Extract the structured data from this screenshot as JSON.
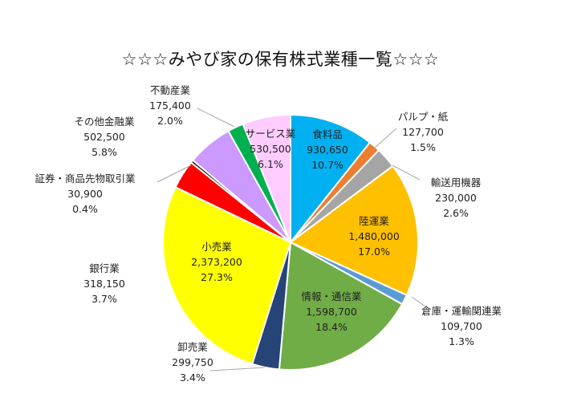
{
  "chart_data": {
    "type": "pie",
    "title": "☆☆☆みやび家の保有株式業種一覧☆☆☆",
    "start_angle_deg": 0,
    "direction": "clockwise",
    "slices": [
      {
        "name": "食料品",
        "value_label": "930,650",
        "value": 930650,
        "percent_label": "10.7%",
        "percent": 10.7,
        "color": "#00b0f0",
        "label_position": "inside"
      },
      {
        "name": "パルプ・紙",
        "value_label": "127,700",
        "value": 127700,
        "percent_label": "1.5%",
        "percent": 1.5,
        "color": "#ed7d31",
        "label_position": "outside"
      },
      {
        "name": "輸送用機器",
        "value_label": "230,000",
        "value": 230000,
        "percent_label": "2.6%",
        "percent": 2.6,
        "color": "#a5a5a5",
        "label_position": "outside"
      },
      {
        "name": "陸運業",
        "value_label": "1,480,000",
        "value": 1480000,
        "percent_label": "17.0%",
        "percent": 17.0,
        "color": "#ffc000",
        "label_position": "inside"
      },
      {
        "name": "倉庫・運輸関連業",
        "value_label": "109,700",
        "value": 109700,
        "percent_label": "1.3%",
        "percent": 1.3,
        "color": "#5b9bd5",
        "label_position": "outside"
      },
      {
        "name": "情報・通信業",
        "value_label": "1,598,700",
        "value": 1598700,
        "percent_label": "18.4%",
        "percent": 18.4,
        "color": "#70ad47",
        "label_position": "inside"
      },
      {
        "name": "卸売業",
        "value_label": "299,750",
        "value": 299750,
        "percent_label": "3.4%",
        "percent": 3.4,
        "color": "#264478",
        "label_position": "outside"
      },
      {
        "name": "小売業",
        "value_label": "2,373,200",
        "value": 2373200,
        "percent_label": "27.3%",
        "percent": 27.3,
        "color": "#ffff00",
        "label_position": "inside"
      },
      {
        "name": "銀行業",
        "value_label": "318,150",
        "value": 318150,
        "percent_label": "3.7%",
        "percent": 3.7,
        "color": "#ff0000",
        "label_position": "outside"
      },
      {
        "name": "証券・商品先物取引業",
        "value_label": "30,900",
        "value": 30900,
        "percent_label": "0.4%",
        "percent": 0.4,
        "color": "#000000",
        "label_position": "outside"
      },
      {
        "name": "その他金融業",
        "value_label": "502,500",
        "value": 502500,
        "percent_label": "5.8%",
        "percent": 5.8,
        "color": "#cc99ff",
        "label_position": "outside"
      },
      {
        "name": "不動産業",
        "value_label": "175,400",
        "value": 175400,
        "percent_label": "2.0%",
        "percent": 2.0,
        "color": "#00b050",
        "label_position": "outside"
      },
      {
        "name": "サービス業",
        "value_label": "530,500",
        "value": 530500,
        "percent_label": "6.1%",
        "percent": 6.1,
        "color": "#ffccff",
        "label_position": "inside"
      }
    ]
  }
}
